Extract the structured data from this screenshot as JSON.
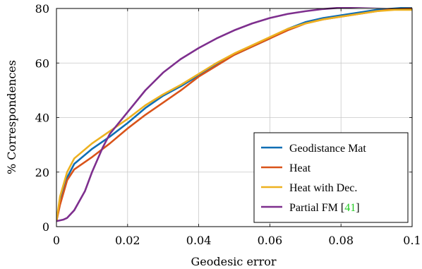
{
  "chart_data": {
    "type": "line",
    "title": "",
    "xlabel": "Geodesic error",
    "ylabel": "% Correspondences",
    "xlim": [
      0,
      0.1
    ],
    "ylim": [
      0,
      80
    ],
    "xticks": [
      "0",
      "0.02",
      "0.04",
      "0.06",
      "0.08",
      "0.1"
    ],
    "yticks": [
      "0",
      "20",
      "40",
      "60",
      "80"
    ],
    "grid": true,
    "legend_position": "bottom-right",
    "series": [
      {
        "name": "Geodistance Mat",
        "color": "#0f6eb4",
        "x": [
          0,
          0.001,
          0.003,
          0.005,
          0.01,
          0.015,
          0.02,
          0.025,
          0.03,
          0.035,
          0.04,
          0.045,
          0.05,
          0.055,
          0.06,
          0.065,
          0.07,
          0.075,
          0.08,
          0.085,
          0.09,
          0.095,
          0.1
        ],
        "y": [
          2,
          9,
          18,
          23,
          28.5,
          33,
          38,
          43.5,
          48,
          51.5,
          55.5,
          59.5,
          63,
          66,
          69,
          72.5,
          75,
          76.5,
          77.5,
          78.5,
          79.5,
          80,
          80.5
        ]
      },
      {
        "name": "Heat",
        "color": "#d95319",
        "x": [
          0,
          0.001,
          0.003,
          0.005,
          0.01,
          0.015,
          0.02,
          0.025,
          0.03,
          0.035,
          0.04,
          0.045,
          0.05,
          0.055,
          0.06,
          0.065,
          0.07,
          0.075,
          0.08,
          0.085,
          0.09,
          0.095,
          0.1
        ],
        "y": [
          2,
          8,
          17,
          21,
          25.5,
          30.5,
          36,
          41,
          45.5,
          50,
          55,
          59,
          63,
          66,
          69,
          72,
          74.5,
          76,
          77,
          78,
          79,
          79.8,
          80
        ]
      },
      {
        "name": "Heat with Dec.",
        "color": "#edb120",
        "x": [
          0,
          0.001,
          0.003,
          0.005,
          0.01,
          0.015,
          0.02,
          0.025,
          0.03,
          0.035,
          0.04,
          0.045,
          0.05,
          0.055,
          0.06,
          0.065,
          0.07,
          0.075,
          0.08,
          0.085,
          0.09,
          0.095,
          0.1
        ],
        "y": [
          2,
          11,
          20,
          25,
          30.5,
          35,
          39.5,
          44.5,
          48.5,
          52,
          56,
          60,
          63.5,
          66.5,
          69.5,
          72.5,
          74.5,
          76,
          77,
          78,
          79,
          79.5,
          79.5
        ]
      },
      {
        "name": "Partial FM [41]",
        "color": "#7e2f8e",
        "x": [
          0,
          0.001,
          0.002,
          0.003,
          0.005,
          0.008,
          0.01,
          0.013,
          0.015,
          0.02,
          0.025,
          0.03,
          0.035,
          0.04,
          0.045,
          0.05,
          0.055,
          0.06,
          0.065,
          0.07,
          0.075,
          0.08,
          0.085,
          0.09,
          0.095,
          0.1
        ],
        "y": [
          2,
          2.3,
          2.6,
          3.2,
          6,
          13,
          20,
          29,
          34,
          42,
          50,
          56.5,
          61.5,
          65.5,
          69,
          72,
          74.5,
          76.5,
          78,
          79,
          79.8,
          80.3,
          80.6,
          80.8,
          80.9,
          81
        ]
      }
    ]
  }
}
